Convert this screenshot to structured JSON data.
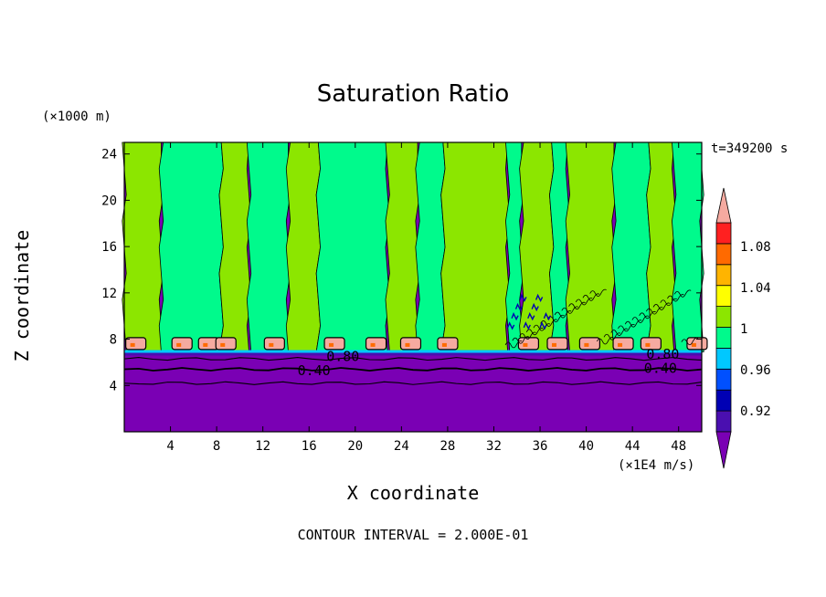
{
  "chart_data": {
    "type": "heatmap",
    "title": "Saturation Ratio",
    "xlabel": "X coordinate",
    "ylabel": "Z coordinate",
    "x_unit": "(×1E4 m/s)",
    "y_unit": "(×1000 m)",
    "time_label": "t=349200 s",
    "footer": "CONTOUR INTERVAL = 2.000E-01",
    "xlim": [
      0,
      50
    ],
    "ylim": [
      0,
      25
    ],
    "x_ticks": [
      "4",
      "8",
      "12",
      "16",
      "20",
      "24",
      "28",
      "32",
      "36",
      "40",
      "44",
      "48"
    ],
    "y_ticks": [
      "4",
      "8",
      "12",
      "16",
      "20",
      "24"
    ],
    "colorbar": {
      "labels": [
        "1.08",
        "1.04",
        "1",
        "0.96",
        "0.92"
      ],
      "levels": [
        {
          "color": "#7a00b4"
        },
        {
          "color": "#4a0fb0"
        },
        {
          "color": "#0000b4"
        },
        {
          "color": "#0050ff"
        },
        {
          "color": "#00c8ff"
        },
        {
          "color": "#00fa8c"
        },
        {
          "color": "#8ce600"
        },
        {
          "color": "#ffff00"
        },
        {
          "color": "#ffb400"
        },
        {
          "color": "#ff6a00"
        },
        {
          "color": "#ff2020"
        },
        {
          "color": "#f5aaa0"
        }
      ]
    },
    "contour_labels": [
      {
        "text": "0.40",
        "x": 15,
        "y": 5.3
      },
      {
        "text": "0.40",
        "x": 45,
        "y": 5.5
      },
      {
        "text": "0.80",
        "x": 17.5,
        "y": 6.5
      },
      {
        "text": "0.80",
        "x": 45.2,
        "y": 6.7
      }
    ],
    "fields": {
      "dry_layer_top_z": 6.9,
      "boundary_layer_color": "#7a00b4",
      "upper_regions": [
        {
          "x0": 0,
          "x1": 3.2,
          "value": "1"
        },
        {
          "x0": 3.2,
          "x1": 8.4,
          "value": "0.98"
        },
        {
          "x0": 8.4,
          "x1": 10.8,
          "value": "1"
        },
        {
          "x0": 10.8,
          "x1": 14.2,
          "value": "0.98"
        },
        {
          "x0": 14.2,
          "x1": 16.8,
          "value": "1"
        },
        {
          "x0": 16.8,
          "x1": 22.8,
          "value": "0.98"
        },
        {
          "x0": 22.8,
          "x1": 25.4,
          "value": "1"
        },
        {
          "x0": 25.4,
          "x1": 27.6,
          "value": "0.98"
        },
        {
          "x0": 27.6,
          "x1": 33.2,
          "value": "1"
        },
        {
          "x0": 33.2,
          "x1": 34.4,
          "value": "0.98"
        },
        {
          "x0": 34.4,
          "x1": 37.0,
          "value": "1"
        },
        {
          "x0": 37.0,
          "x1": 38.4,
          "value": "0.98"
        },
        {
          "x0": 38.4,
          "x1": 42.4,
          "value": "1"
        },
        {
          "x0": 42.4,
          "x1": 45.4,
          "value": "0.98"
        },
        {
          "x0": 45.4,
          "x1": 47.6,
          "value": "1"
        },
        {
          "x0": 47.6,
          "x1": 50,
          "value": "0.98"
        }
      ],
      "supersaturated_cells_x": [
        1,
        5,
        7.3,
        8.8,
        13,
        18.2,
        21.8,
        24.8,
        28,
        35,
        37.5,
        40.3,
        43.2,
        45.6,
        49.6
      ]
    }
  }
}
